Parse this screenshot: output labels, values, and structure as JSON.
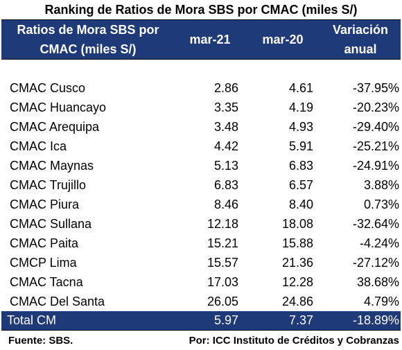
{
  "chart_data": {
    "type": "table",
    "title": "Ranking de Ratios de Mora SBS por CMAC (miles S/)",
    "columns": [
      "Ratios de Mora SBS por CMAC (miles S/)",
      "mar-21",
      "mar-20",
      "Variación anual"
    ],
    "header": {
      "name_line1": "Ratios de Mora SBS por",
      "name_line2": "CMAC (miles S/)",
      "col1": "mar-21",
      "col2": "mar-20",
      "col3_line1": "Variación",
      "col3_line2": "anual"
    },
    "rows": [
      {
        "name": "CMAC Cusco",
        "mar21": "2.86",
        "mar20": "4.61",
        "var": "-37.95%"
      },
      {
        "name": "CMAC Huancayo",
        "mar21": "3.35",
        "mar20": "4.19",
        "var": "-20.23%"
      },
      {
        "name": "CMAC Arequipa",
        "mar21": "3.48",
        "mar20": "4.93",
        "var": "-29.40%"
      },
      {
        "name": "CMAC Ica",
        "mar21": "4.42",
        "mar20": "5.91",
        "var": "-25.21%"
      },
      {
        "name": "CMAC Maynas",
        "mar21": "5.13",
        "mar20": "6.83",
        "var": "-24.91%"
      },
      {
        "name": "CMAC Trujillo",
        "mar21": "6.83",
        "mar20": "6.57",
        "var": "3.88%"
      },
      {
        "name": "CMAC Piura",
        "mar21": "8.46",
        "mar20": "8.40",
        "var": "0.73%"
      },
      {
        "name": "CMAC Sullana",
        "mar21": "12.18",
        "mar20": "18.08",
        "var": "-32.64%"
      },
      {
        "name": "CMAC Paita",
        "mar21": "15.21",
        "mar20": "15.88",
        "var": "-4.24%"
      },
      {
        "name": "CMCP Lima",
        "mar21": "15.57",
        "mar20": "21.36",
        "var": "-27.12%"
      },
      {
        "name": "CMAC Tacna",
        "mar21": "17.03",
        "mar20": "12.28",
        "var": "38.68%"
      },
      {
        "name": "CMAC Del Santa",
        "mar21": "26.05",
        "mar20": "24.86",
        "var": "4.79%"
      }
    ],
    "total": {
      "name": "Total CM",
      "mar21": "5.97",
      "mar20": "7.37",
      "var": "-18.89%"
    }
  },
  "footer": {
    "source": "Fuente: SBS.",
    "author": "Por: ICC Instituto de Créditos y Cobranzas"
  },
  "colors": {
    "header_bg": "#1f3a78",
    "header_text": "#ffffff"
  }
}
